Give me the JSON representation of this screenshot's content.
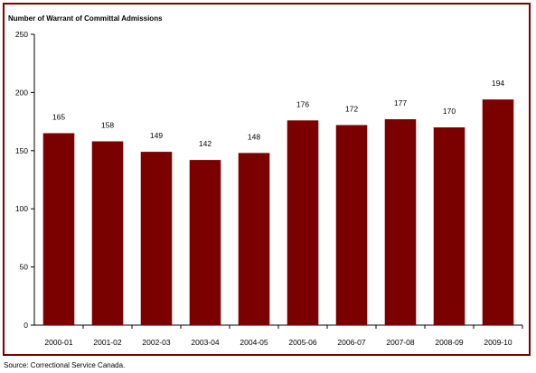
{
  "chart_data": {
    "type": "bar",
    "title": "Number of Warrant of Committal Admissions",
    "categories": [
      "2000-01",
      "2001-02",
      "2002-03",
      "2003-04",
      "2004-05",
      "2005-06",
      "2006-07",
      "2007-08",
      "2008-09",
      "2009-10"
    ],
    "values": [
      165,
      158,
      149,
      142,
      148,
      176,
      172,
      177,
      170,
      194
    ],
    "data_labels": [
      "165",
      "158",
      "149",
      "142",
      "148",
      "176",
      "172",
      "177",
      "170",
      "194"
    ],
    "ylim": [
      0,
      250
    ],
    "yticks": [
      0,
      50,
      100,
      150,
      200,
      250
    ],
    "ytick_labels": [
      "0",
      "50",
      "100",
      "150",
      "200",
      "250"
    ],
    "grid": false,
    "bar_color": "#7b0000",
    "frame_color": "#7b0000"
  },
  "source": "Source:  Correctional Service Canada."
}
